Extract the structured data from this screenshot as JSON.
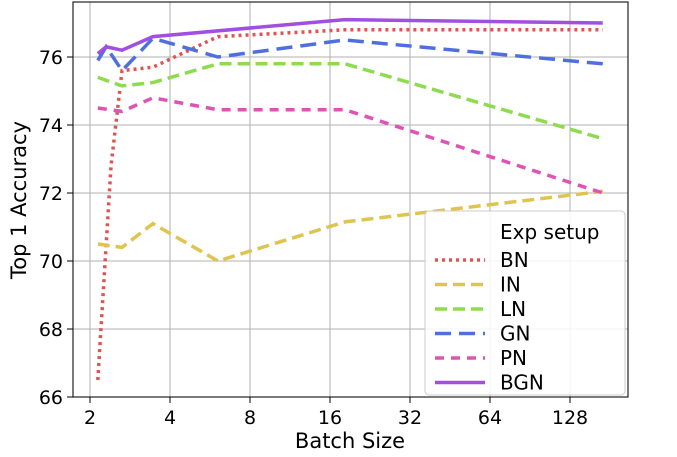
{
  "chart_data": {
    "type": "line",
    "title": "",
    "xlabel": "Batch Size",
    "ylabel": "Top 1 Accuracy",
    "xscale": "log2",
    "xlim": [
      1.85,
      220
    ],
    "ylim": [
      66,
      77.6
    ],
    "xticks": [
      2,
      4,
      8,
      16,
      32,
      64,
      128
    ],
    "xtick_labels": [
      "2",
      "4",
      "8",
      "16",
      "32",
      "64",
      "128"
    ],
    "yticks": [
      66,
      68,
      70,
      72,
      74,
      76
    ],
    "ytick_labels": [
      "66",
      "68",
      "70",
      "72",
      "74",
      "76"
    ],
    "grid": true,
    "legend": {
      "title": "Exp setup",
      "placement": "bottom-right"
    },
    "series": [
      {
        "name": "BN",
        "color": "#e05353",
        "style": "dotted",
        "x": [
          2.14,
          2.4,
          2.64,
          3.45,
          6.06,
          18.2,
          170
        ],
        "y": [
          66.5,
          72.8,
          75.6,
          75.7,
          76.6,
          76.8,
          76.8
        ]
      },
      {
        "name": "IN",
        "color": "#dfc44f",
        "style": "dashed",
        "x": [
          2.14,
          2.64,
          3.45,
          6.06,
          18.2,
          170
        ],
        "y": [
          70.5,
          70.4,
          71.1,
          70.0,
          71.15,
          72.05
        ]
      },
      {
        "name": "LN",
        "color": "#8edb4f",
        "style": "dashed",
        "x": [
          2.14,
          2.64,
          3.45,
          6.06,
          18.2,
          170
        ],
        "y": [
          75.4,
          75.15,
          75.25,
          75.8,
          75.8,
          73.6
        ]
      },
      {
        "name": "GN",
        "color": "#4f6fdf",
        "style": "longdash",
        "x": [
          2.14,
          2.3,
          2.64,
          3.45,
          6.06,
          18.2,
          170
        ],
        "y": [
          75.9,
          76.3,
          75.6,
          76.55,
          76.0,
          76.5,
          75.8
        ]
      },
      {
        "name": "PN",
        "color": "#e053b6",
        "style": "dashed-short",
        "x": [
          2.14,
          2.64,
          3.45,
          6.06,
          18.2,
          170
        ],
        "y": [
          74.5,
          74.4,
          74.8,
          74.45,
          74.45,
          72.0
        ]
      },
      {
        "name": "BGN",
        "color": "#a14fdf",
        "style": "solid",
        "x": [
          2.14,
          2.3,
          2.64,
          3.45,
          18.2,
          170
        ],
        "y": [
          76.1,
          76.3,
          76.2,
          76.6,
          77.1,
          77.0
        ]
      }
    ]
  }
}
